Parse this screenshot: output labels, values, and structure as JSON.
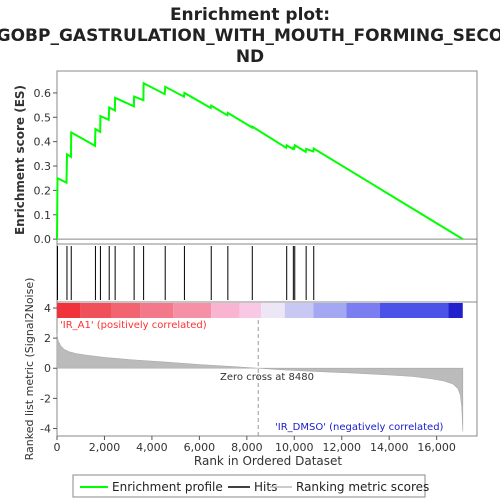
{
  "chart_data": {
    "type": "line",
    "title_lines": [
      "Enrichment plot:",
      "GOBP_GASTRULATION_WITH_MOUTH_FORMING_SECO",
      "ND"
    ],
    "ylabel_top": "Enrichment score (ES)",
    "ylabel_bottom": "Ranked list metric (Signal2Noise)",
    "xlabel": "Rank in Ordered Dataset",
    "xlim": [
      0,
      17700
    ],
    "es_ylim": [
      -0.02,
      0.69
    ],
    "metric_ylim": [
      -4.5,
      4.4
    ],
    "x_ticks": [
      "0",
      "2,000",
      "4,000",
      "6,000",
      "8,000",
      "10,000",
      "12,000",
      "14,000",
      "16,000"
    ],
    "x_tick_values": [
      0,
      2000,
      4000,
      6000,
      8000,
      10000,
      12000,
      14000,
      16000
    ],
    "es_ticks": [
      "0.0",
      "0.1",
      "0.2",
      "0.3",
      "0.4",
      "0.5",
      "0.6"
    ],
    "es_tick_values": [
      0,
      0.1,
      0.2,
      0.3,
      0.4,
      0.5,
      0.6
    ],
    "metric_ticks": [
      "4",
      "2",
      "0",
      "-2",
      "-4"
    ],
    "metric_tick_values": [
      4,
      2,
      0,
      -2,
      -4
    ],
    "total_rank": 17100,
    "hits": [
      20,
      420,
      600,
      1620,
      1830,
      2200,
      2450,
      3250,
      3650,
      4560,
      5370,
      6500,
      7200,
      8230,
      9680,
      9960,
      10020,
      10500,
      10820
    ],
    "enrichment_profile": {
      "x": [
        0,
        20,
        400,
        420,
        590,
        600,
        1600,
        1620,
        1820,
        1830,
        2180,
        2200,
        2440,
        2450,
        3240,
        3250,
        3640,
        3650,
        4540,
        4560,
        5350,
        5370,
        6480,
        6500,
        7180,
        7200,
        8220,
        8230,
        9660,
        9680,
        9940,
        9960,
        10000,
        10020,
        10480,
        10500,
        10800,
        10820,
        17100
      ],
      "y": [
        0.0,
        0.25,
        0.232,
        0.348,
        0.338,
        0.438,
        0.383,
        0.452,
        0.44,
        0.505,
        0.49,
        0.54,
        0.528,
        0.58,
        0.545,
        0.585,
        0.57,
        0.64,
        0.595,
        0.625,
        0.585,
        0.6,
        0.538,
        0.548,
        0.508,
        0.518,
        0.458,
        0.462,
        0.375,
        0.385,
        0.37,
        0.375,
        0.372,
        0.385,
        0.358,
        0.37,
        0.36,
        0.372,
        0.0
      ]
    },
    "metric_curve": {
      "x": [
        0,
        50,
        150,
        300,
        500,
        800,
        1200,
        2000,
        3000,
        4500,
        6000,
        7500,
        8480,
        9500,
        11000,
        12500,
        14000,
        15000,
        15800,
        16300,
        16700,
        16900,
        17000,
        17060,
        17100
      ],
      "y": [
        2.3,
        1.8,
        1.5,
        1.25,
        1.1,
        0.98,
        0.88,
        0.72,
        0.58,
        0.42,
        0.25,
        0.1,
        0.0,
        -0.1,
        -0.22,
        -0.32,
        -0.45,
        -0.55,
        -0.7,
        -0.85,
        -1.05,
        -1.35,
        -1.8,
        -2.6,
        -4.2
      ]
    },
    "heat_segments": [
      {
        "end": 1000,
        "color": "#f0323c"
      },
      {
        "end": 2300,
        "color": "#f0505a"
      },
      {
        "end": 3500,
        "color": "#f26470"
      },
      {
        "end": 4900,
        "color": "#f2788a"
      },
      {
        "end": 6500,
        "color": "#f690a6"
      },
      {
        "end": 7700,
        "color": "#f8b4d0"
      },
      {
        "end": 8600,
        "color": "#f8c8e4"
      },
      {
        "end": 9600,
        "color": "#ece6f6"
      },
      {
        "end": 10800,
        "color": "#c8c8f2"
      },
      {
        "end": 12200,
        "color": "#a4a8f2"
      },
      {
        "end": 13600,
        "color": "#7a7ef0"
      },
      {
        "end": 16500,
        "color": "#4a52e8"
      },
      {
        "end": 17100,
        "color": "#2020cc"
      }
    ],
    "zero_cross": 8480,
    "zero_cross_label": "Zero cross at 8480",
    "pos_label": "'IR_A1' (positively correlated)",
    "neg_label": "'IR_DMSO' (negatively correlated)",
    "colors": {
      "profile": "#00ff00",
      "hits": "#000000",
      "metric_fill": "#bbbbbb",
      "pos_label": "#ff3030",
      "neg_label": "#1a1acc"
    },
    "legend": [
      {
        "label": "Enrichment profile",
        "style": "green-line"
      },
      {
        "label": "Hits",
        "style": "black-line"
      },
      {
        "label": "Ranking metric scores",
        "style": "gray-line"
      }
    ]
  }
}
